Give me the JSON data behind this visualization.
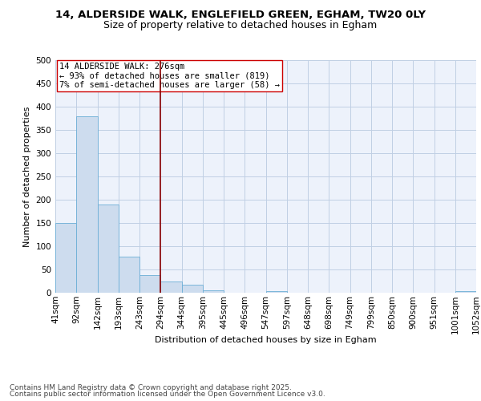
{
  "title_line1": "14, ALDERSIDE WALK, ENGLEFIELD GREEN, EGHAM, TW20 0LY",
  "title_line2": "Size of property relative to detached houses in Egham",
  "xlabel": "Distribution of detached houses by size in Egham",
  "ylabel": "Number of detached properties",
  "bar_values": [
    150,
    380,
    190,
    77,
    38,
    25,
    17,
    6,
    0,
    0,
    4,
    0,
    0,
    0,
    0,
    0,
    0,
    0,
    0,
    3
  ],
  "bar_labels": [
    "41sqm",
    "92sqm",
    "142sqm",
    "193sqm",
    "243sqm",
    "294sqm",
    "344sqm",
    "395sqm",
    "445sqm",
    "496sqm",
    "547sqm",
    "597sqm",
    "648sqm",
    "698sqm",
    "749sqm",
    "799sqm",
    "850sqm",
    "900sqm",
    "951sqm",
    "1001sqm",
    "1052sqm"
  ],
  "bar_color": "#cddcee",
  "bar_edge_color": "#6baed6",
  "background_color": "#edf2fb",
  "grid_color": "#c0cfe4",
  "vline_color": "#8b0000",
  "annotation_text": "14 ALDERSIDE WALK: 276sqm\n← 93% of detached houses are smaller (819)\n7% of semi-detached houses are larger (58) →",
  "annotation_box_color": "#ffffff",
  "annotation_box_edge": "#cc0000",
  "ylim": [
    0,
    500
  ],
  "yticks": [
    0,
    50,
    100,
    150,
    200,
    250,
    300,
    350,
    400,
    450,
    500
  ],
  "ytick_labels": [
    "0",
    "50",
    "100",
    "150",
    "200",
    "250",
    "300",
    "350",
    "400",
    "450",
    "500"
  ],
  "footer_line1": "Contains HM Land Registry data © Crown copyright and database right 2025.",
  "footer_line2": "Contains public sector information licensed under the Open Government Licence v3.0.",
  "title_fontsize": 9.5,
  "subtitle_fontsize": 9,
  "axis_label_fontsize": 8,
  "tick_fontsize": 7.5,
  "annotation_fontsize": 7.5,
  "footer_fontsize": 6.5
}
